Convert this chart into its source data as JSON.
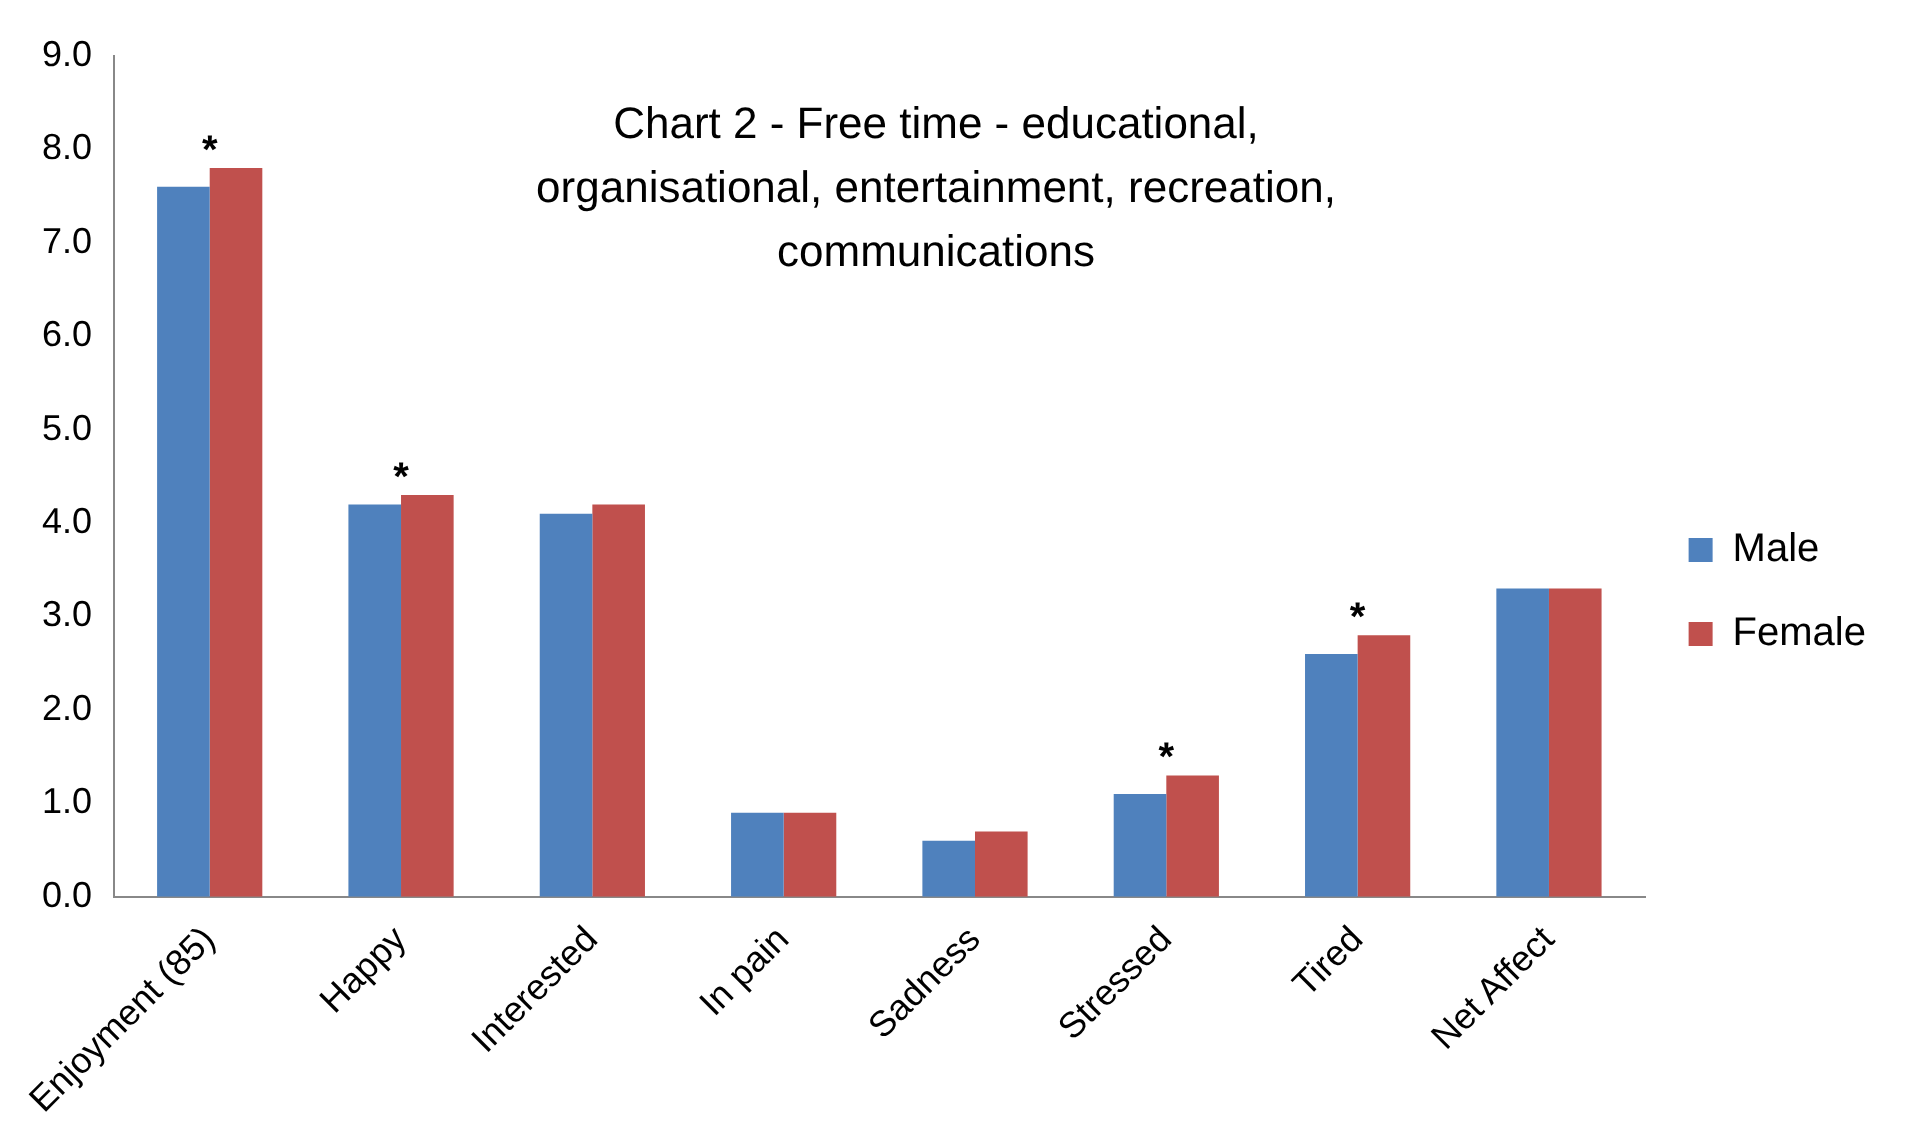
{
  "chart_data": {
    "type": "bar",
    "title": "Chart 2 - Free time - educational, organisational, entertainment, recreation, communications",
    "categories": [
      "Enjoyment (85)",
      "Happy",
      "Interested",
      "In pain",
      "Sadness",
      "Stressed",
      "Tired",
      "Net Affect"
    ],
    "series": [
      {
        "name": "Male",
        "color": "#4f81bd",
        "values": [
          7.6,
          4.2,
          4.1,
          0.9,
          0.6,
          1.1,
          2.6,
          3.3
        ]
      },
      {
        "name": "Female",
        "color": "#c0504d",
        "values": [
          7.8,
          4.3,
          4.2,
          0.9,
          0.7,
          1.3,
          2.8,
          3.3
        ]
      }
    ],
    "ylim": [
      0,
      9
    ],
    "yticks": [
      {
        "value": 0,
        "label": "0.0"
      },
      {
        "value": 1,
        "label": "1.0"
      },
      {
        "value": 2,
        "label": "2.0"
      },
      {
        "value": 3,
        "label": "3.0"
      },
      {
        "value": 4,
        "label": "4.0"
      },
      {
        "value": 5,
        "label": "5.0"
      },
      {
        "value": 6,
        "label": "6.0"
      },
      {
        "value": 7,
        "label": "7.0"
      },
      {
        "value": 8,
        "label": "8.0"
      },
      {
        "value": 9,
        "label": "9.0"
      }
    ],
    "annotations": [
      {
        "text": "*",
        "x": "Enjoyment (85)",
        "y": 7.8
      },
      {
        "text": "*",
        "x": "Happy",
        "y": 4.3
      },
      {
        "text": "*",
        "x": "Stressed",
        "y": 1.3
      },
      {
        "text": "*",
        "x": "Tired",
        "y": 2.8
      }
    ],
    "grid": false,
    "legend": "right"
  }
}
